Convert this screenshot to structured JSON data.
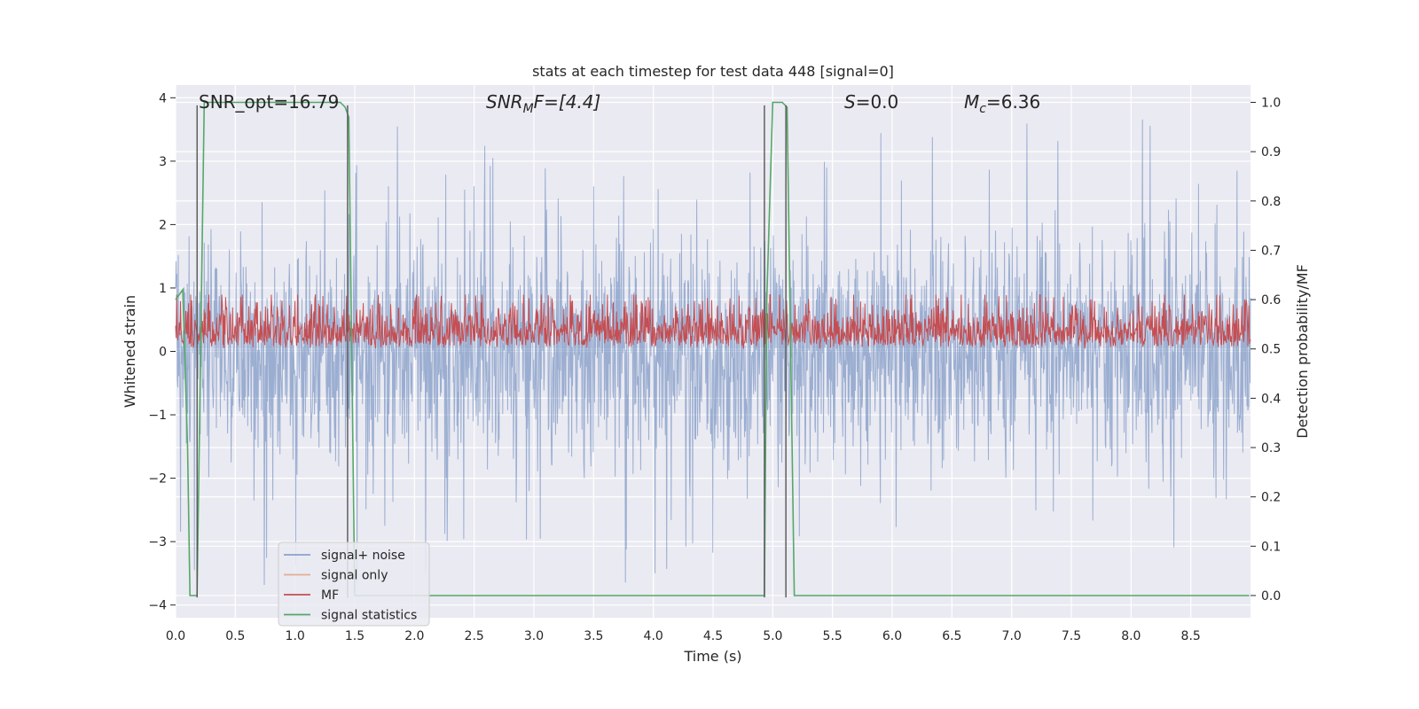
{
  "chart_data": {
    "type": "line",
    "title": "stats at each timestep for test data 448 [signal=0]",
    "xlabel": "Time (s)",
    "ylabel_left": "Whitened strain",
    "ylabel_right": "Detection probability/MF",
    "xlim": [
      0.0,
      9.0
    ],
    "ylim_left": [
      -4.2,
      4.2
    ],
    "ylim_right": [
      -0.045,
      1.035
    ],
    "x_ticks": [
      0.0,
      0.5,
      1.0,
      1.5,
      2.0,
      2.5,
      3.0,
      3.5,
      4.0,
      4.5,
      5.0,
      5.5,
      6.0,
      6.5,
      7.0,
      7.5,
      8.0,
      8.5
    ],
    "x_tick_labels": [
      "0.0",
      "0.5",
      "1.0",
      "1.5",
      "2.0",
      "2.5",
      "3.0",
      "3.5",
      "4.0",
      "4.5",
      "5.0",
      "5.5",
      "6.0",
      "6.5",
      "7.0",
      "7.5",
      "8.0",
      "8.5"
    ],
    "y_left_ticks": [
      -4,
      -3,
      -2,
      -1,
      0,
      1,
      2,
      3,
      4
    ],
    "y_left_tick_labels": [
      "−4",
      "−3",
      "−2",
      "−1",
      "0",
      "1",
      "2",
      "3",
      "4"
    ],
    "y_right_ticks": [
      0.0,
      0.1,
      0.2,
      0.3,
      0.4,
      0.5,
      0.6,
      0.7,
      0.8,
      0.9,
      1.0
    ],
    "y_right_tick_labels": [
      "0.0",
      "0.1",
      "0.2",
      "0.3",
      "0.4",
      "0.5",
      "0.6",
      "0.7",
      "0.8",
      "0.9",
      "1.0"
    ],
    "grid": true,
    "legend_position": "lower-left",
    "legend": [
      {
        "name": "signal+ noise",
        "color": "#4c72b0"
      },
      {
        "name": "signal only",
        "color": "#dd8452"
      },
      {
        "name": "MF",
        "color": "#c44e52"
      },
      {
        "name": "signal statistics",
        "color": "#55a868"
      }
    ],
    "annotations": {
      "snr_opt": "SNR_opt=16.79",
      "snr_mf_base": "SNR",
      "snr_mf_sub": "M",
      "snr_mf_rest": "F=[4.4]",
      "s_label": "S",
      "s_rest": "=0.0",
      "mc_base": "M",
      "mc_sub": "c",
      "mc_rest": "=6.36"
    },
    "vertical_lines_x": [
      0.18,
      1.44,
      4.93,
      5.11
    ],
    "series": [
      {
        "name": "signal+ noise",
        "axis": "left",
        "color": "#4c72b0",
        "style": "noise",
        "envelope_typical": 1.5,
        "peak_max": 3.85,
        "peak_min": -4.0
      },
      {
        "name": "MF",
        "axis": "right",
        "color": "#c44e52",
        "style": "noise-band",
        "typical_range": [
          0.51,
          0.58
        ],
        "peak_max": 0.61,
        "floor": 0.5
      },
      {
        "name": "signal statistics",
        "axis": "right",
        "color": "#55a868",
        "x": [
          0.0,
          0.06,
          0.1,
          0.12,
          0.18,
          0.24,
          0.26,
          1.38,
          1.42,
          1.45,
          1.5,
          1.52,
          4.93,
          4.95,
          5.0,
          5.08,
          5.12,
          5.18,
          8.99
        ],
        "y": [
          0.6,
          0.62,
          0.3,
          0.0,
          0.0,
          1.0,
          1.0,
          1.0,
          0.99,
          0.97,
          0.0,
          0.0,
          0.0,
          0.6,
          1.0,
          1.0,
          0.99,
          0.0,
          0.0
        ]
      }
    ]
  }
}
